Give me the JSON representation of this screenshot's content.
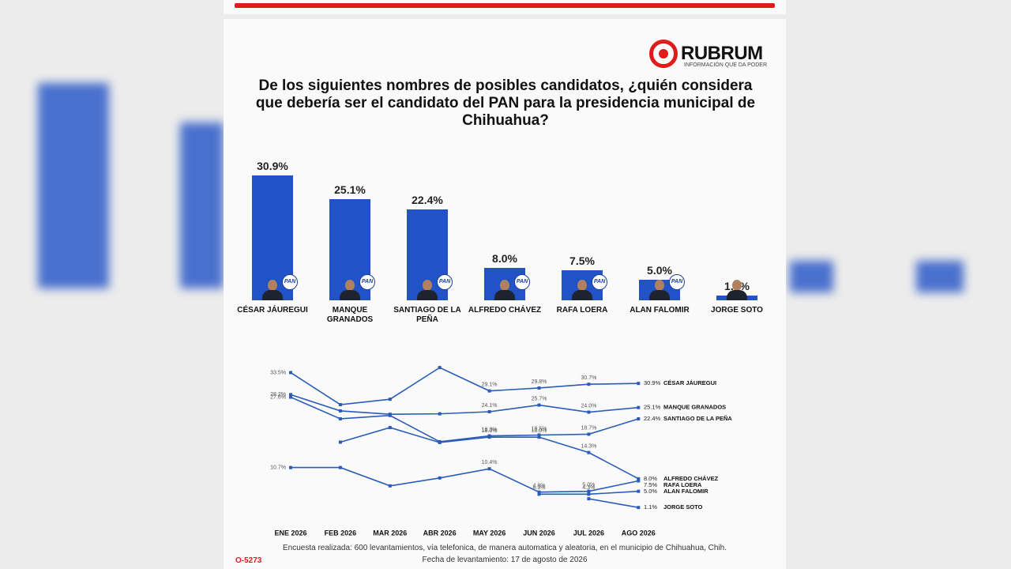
{
  "logo": {
    "name": "RUBRUM",
    "tagline": "INFORMACIÓN QUE DA PODER"
  },
  "chart_data": [
    {
      "type": "bar",
      "title": "De los siguientes nombres de posibles candidatos, ¿quién considera que debería ser el candidato del PAN para la presidencia municipal de Chihuahua?",
      "categories": [
        "CÉSAR JÁUREGUI",
        "MANQUE GRANADOS",
        "SANTIAGO DE LA PEÑA",
        "ALFREDO CHÁVEZ",
        "RAFA LOERA",
        "ALAN FALOMIR",
        "JORGE SOTO"
      ],
      "values": [
        30.9,
        25.1,
        22.4,
        8.0,
        7.5,
        5.0,
        1.1
      ],
      "value_labels": [
        "30.9%",
        "25.1%",
        "22.4%",
        "8.0%",
        "7.5%",
        "5.0%",
        "1.1%"
      ],
      "color": "#2152c6",
      "ylim": [
        0,
        31
      ]
    },
    {
      "type": "line",
      "categories": [
        "ENE 2026",
        "FEB 2026",
        "MAR 2026",
        "ABR 2026",
        "MAY 2026",
        "JUN 2026",
        "JUL 2026",
        "AGO 2026"
      ],
      "ylim": [
        0,
        35
      ],
      "series": [
        {
          "name": "CÉSAR JÁUREGUI",
          "color": "#2a5cb8",
          "values": [
            33.5,
            25.8,
            27.1,
            34.7,
            29.1,
            29.8,
            30.7,
            30.9
          ],
          "value_labels": [
            "33.5%",
            null,
            null,
            null,
            "29.1%",
            "29.8%",
            "30.7%",
            "30.9%"
          ]
        },
        {
          "name": "MANQUE GRANADOS",
          "color": "#2a5cb8",
          "values": [
            28.2,
            24.3,
            23.5,
            23.6,
            24.1,
            25.7,
            24.0,
            25.1
          ],
          "value_labels": [
            "28.2%",
            null,
            null,
            null,
            "24.1%",
            "25.7%",
            "24.0%",
            "25.1%"
          ]
        },
        {
          "name": "SANTIAGO DE LA PEÑA",
          "color": "#2a5cb8",
          "values": [
            27.6,
            22.4,
            23.2,
            16.9,
            18.3,
            18.5,
            18.7,
            22.4
          ],
          "value_labels": [
            "27.6%",
            null,
            null,
            null,
            "18.3%",
            "18.5%",
            "18.7%",
            "22.4%"
          ]
        },
        {
          "name": "ALFREDO CHÁVEZ",
          "color": "#2a5cb8",
          "values": [
            null,
            16.8,
            20.3,
            16.7,
            18.0,
            18.0,
            14.3,
            8.0
          ],
          "value_labels": [
            null,
            null,
            null,
            null,
            "18.0%",
            "18.0%",
            "14.3%",
            "8.0%"
          ]
        },
        {
          "name": "RAFA LOERA",
          "color": "#2a5cb8",
          "values": [
            10.7,
            10.7,
            6.3,
            8.2,
            10.4,
            4.8,
            5.0,
            7.5
          ],
          "value_labels": [
            "10.7%",
            null,
            null,
            null,
            "10.4%",
            "4.8%",
            "5.0%",
            "7.5%"
          ]
        },
        {
          "name": "ALAN FALOMIR",
          "color": "#2a5cb8",
          "values": [
            null,
            null,
            null,
            null,
            null,
            4.3,
            4.3,
            5.0
          ],
          "value_labels": [
            null,
            null,
            null,
            null,
            null,
            "4.3%",
            "4.3%",
            "5.0%"
          ]
        },
        {
          "name": "JORGE SOTO",
          "color": "#2a5cb8",
          "values": [
            null,
            null,
            null,
            null,
            null,
            null,
            3.2,
            1.1
          ],
          "value_labels": [
            null,
            null,
            null,
            null,
            null,
            null,
            null,
            "1.1%"
          ]
        }
      ]
    }
  ],
  "footer": {
    "note": "Encuesta realizada: 600 levantamientos, vía telefonica, de manera automatica y aleatoria, en el municipio de Chihuahua, Chih.",
    "date": "Fecha de levantamiento: 17 de agosto de 2026",
    "code": "O-5273"
  }
}
